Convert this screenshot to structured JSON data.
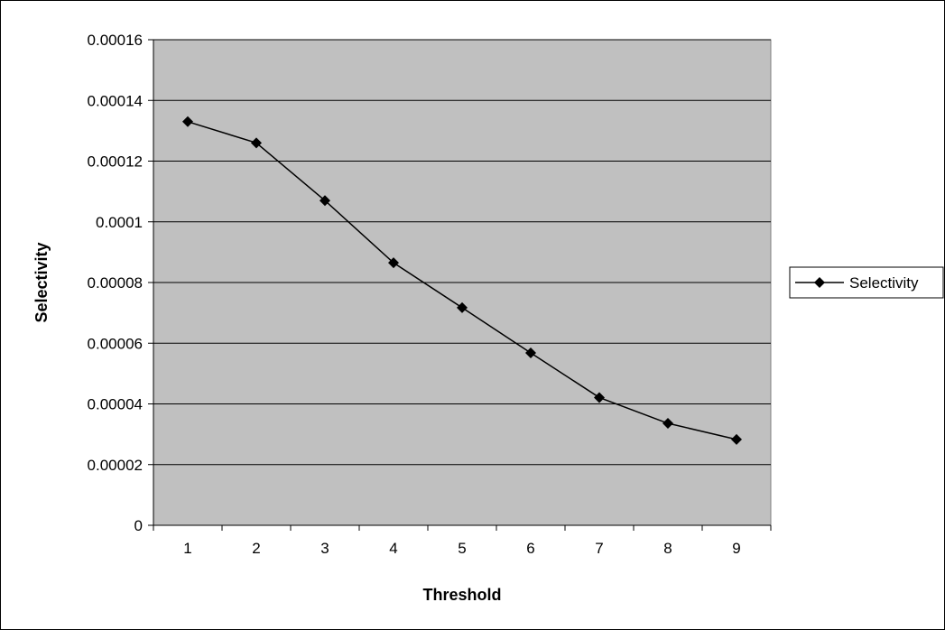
{
  "chart_data": {
    "type": "line",
    "title": "",
    "xlabel": "Threshold",
    "ylabel": "Selectivity",
    "categories": [
      "1",
      "2",
      "3",
      "4",
      "5",
      "6",
      "7",
      "8",
      "9"
    ],
    "series": [
      {
        "name": "Selectivity",
        "values": [
          0.000133,
          0.000126,
          0.000107,
          8.65e-05,
          7.17e-05,
          5.68e-05,
          4.21e-05,
          3.36e-05,
          2.83e-05
        ],
        "color": "#000000",
        "marker": "diamond"
      }
    ],
    "ylim": [
      0,
      0.00016
    ],
    "y_ticks": [
      "0",
      "0.00002",
      "0.00004",
      "0.00006",
      "0.00008",
      "0.0001",
      "0.00012",
      "0.00014",
      "0.00016"
    ],
    "grid": true,
    "plot_background": "#c0c0c0",
    "legend_position": "right"
  }
}
